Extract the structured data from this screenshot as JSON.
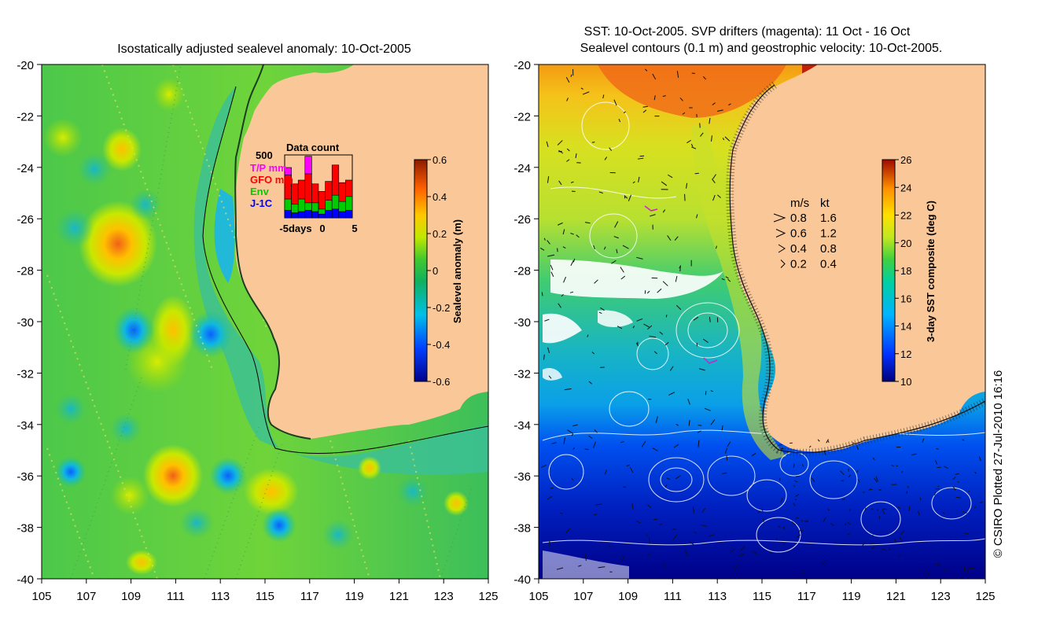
{
  "left_panel": {
    "title": "Isostatically adjusted sealevel anomaly: 10-Oct-2005",
    "y_ticks": [
      "-20",
      "-22",
      "-24",
      "-26",
      "-28",
      "-30",
      "-32",
      "-34",
      "-36",
      "-38",
      "-40"
    ],
    "x_ticks": [
      "105",
      "107",
      "109",
      "111",
      "113",
      "115",
      "117",
      "119",
      "121",
      "123",
      "125"
    ],
    "colorbar": {
      "label": "Sealevel anomaly (m)",
      "ticks": [
        "0.6",
        "0.4",
        "0.2",
        "0",
        "-0.2",
        "-0.4",
        "-0.6"
      ]
    },
    "inset": {
      "title": "Data count",
      "ymax_label": "500",
      "legend": [
        {
          "name": "T/P mm",
          "color": "#ff00ff"
        },
        {
          "name": "GFO mm",
          "color": "#ff0000"
        },
        {
          "name": "Env",
          "color": "#00cc00"
        },
        {
          "name": "J-1C",
          "color": "#0000ff"
        }
      ],
      "x_ticks": [
        "-5days",
        "0",
        "5"
      ],
      "bars": [
        {
          "day": -5,
          "jc": 60,
          "env": 90,
          "gfo": 190,
          "tp": 60
        },
        {
          "day": -4,
          "jc": 40,
          "env": 70,
          "gfo": 160,
          "tp": 0
        },
        {
          "day": -3,
          "jc": 50,
          "env": 100,
          "gfo": 150,
          "tp": 0
        },
        {
          "day": -2,
          "jc": 60,
          "env": 60,
          "gfo": 230,
          "tp": 140
        },
        {
          "day": -1,
          "jc": 50,
          "env": 70,
          "gfo": 150,
          "tp": 0
        },
        {
          "day": 0,
          "jc": 30,
          "env": 40,
          "gfo": 140,
          "tp": 0
        },
        {
          "day": 1,
          "jc": 60,
          "env": 80,
          "gfo": 150,
          "tp": 0
        },
        {
          "day": 2,
          "jc": 70,
          "env": 110,
          "gfo": 240,
          "tp": 0
        },
        {
          "day": 3,
          "jc": 50,
          "env": 80,
          "gfo": 150,
          "tp": 0
        },
        {
          "day": 4,
          "jc": 60,
          "env": 110,
          "gfo": 130,
          "tp": 0
        }
      ]
    }
  },
  "right_panel": {
    "title_line1": "SST: 10-Oct-2005. SVP drifters (magenta): 11 Oct - 16 Oct",
    "title_line2": "Sealevel contours (0.1 m) and geostrophic velocity: 10-Oct-2005.",
    "y_ticks": [
      "-20",
      "-22",
      "-24",
      "-26",
      "-28",
      "-30",
      "-32",
      "-34",
      "-36",
      "-38",
      "-40"
    ],
    "x_ticks": [
      "105",
      "107",
      "109",
      "111",
      "113",
      "115",
      "117",
      "119",
      "121",
      "123",
      "125"
    ],
    "colorbar": {
      "label": "3-day SST composite (deg C)",
      "ticks": [
        "26",
        "24",
        "22",
        "20",
        "18",
        "16",
        "14",
        "12",
        "10"
      ]
    },
    "velocity_legend": {
      "header_ms": "m/s",
      "header_kt": "kt",
      "rows": [
        {
          "ms": "0.8",
          "kt": "1.6"
        },
        {
          "ms": "0.6",
          "kt": "1.2"
        },
        {
          "ms": "0.4",
          "kt": "0.8"
        },
        {
          "ms": "0.2",
          "kt": "0.4"
        }
      ]
    }
  },
  "credit": "© CSIRO Plotted 27-Jul-2010 16:16",
  "colors": {
    "land": "#fac898",
    "sla_colormap": [
      "#00008b",
      "#0050ff",
      "#00c8e6",
      "#10b060",
      "#60d020",
      "#c8e800",
      "#ffc000",
      "#ff6000",
      "#8b1a00"
    ],
    "sst_colormap": [
      "#00007a",
      "#0030ff",
      "#00b4ff",
      "#00d8a0",
      "#40d040",
      "#c0e820",
      "#ffe000",
      "#ff9000",
      "#b01000"
    ]
  }
}
